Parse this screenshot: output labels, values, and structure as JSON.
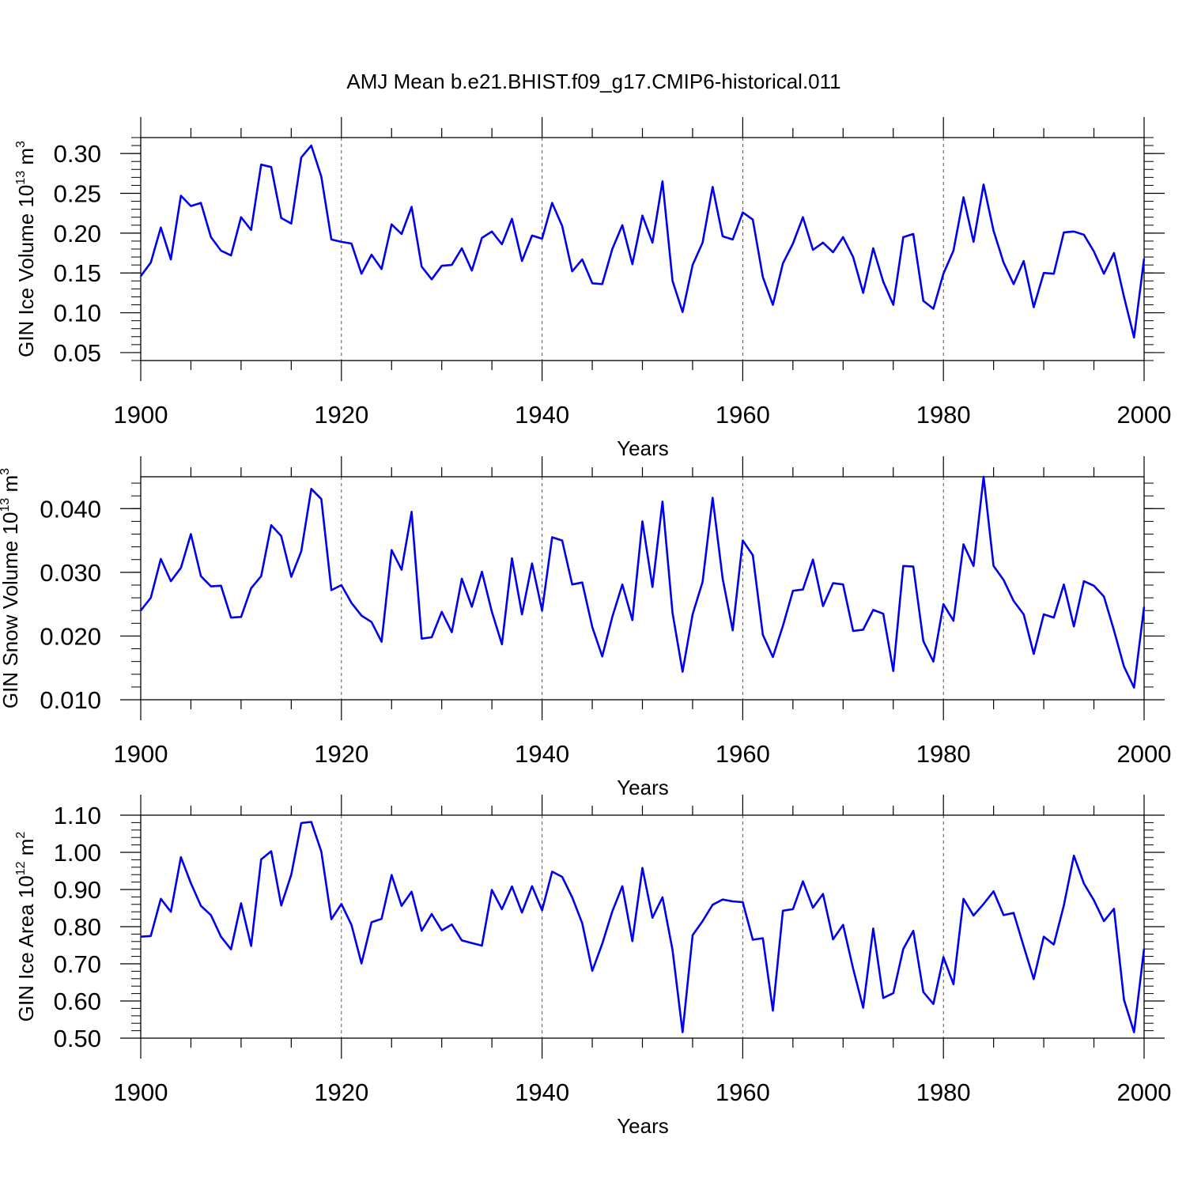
{
  "title": "AMJ Mean b.e21.BHIST.f09_g17.CMIP6-historical.011",
  "chart_data": [
    {
      "type": "line",
      "ylabel": "GIN Ice Volume 10",
      "ylabel_exp": "13",
      "ylabel_unit": " m",
      "ylabel_unit_exp": "3",
      "xlabel": "Years",
      "xlim": [
        1900,
        2000
      ],
      "ylim": [
        0.04,
        0.32
      ],
      "x_ticks": [
        "1900",
        "1920",
        "1940",
        "1960",
        "1980",
        "2000"
      ],
      "y_ticks": [
        "0.05",
        "0.10",
        "0.15",
        "0.20",
        "0.25",
        "0.30"
      ],
      "line_color": "#0000ee",
      "grid": "dashed vertical at 1920, 1940, 1960, 1980",
      "x": [
        1900,
        1901,
        1902,
        1903,
        1904,
        1905,
        1906,
        1907,
        1908,
        1909,
        1910,
        1911,
        1912,
        1913,
        1914,
        1915,
        1916,
        1917,
        1918,
        1919,
        1920,
        1921,
        1922,
        1923,
        1924,
        1925,
        1926,
        1927,
        1928,
        1929,
        1930,
        1931,
        1932,
        1933,
        1934,
        1935,
        1936,
        1937,
        1938,
        1939,
        1940,
        1941,
        1942,
        1943,
        1944,
        1945,
        1946,
        1947,
        1948,
        1949,
        1950,
        1951,
        1952,
        1953,
        1954,
        1955,
        1956,
        1957,
        1958,
        1959,
        1960,
        1961,
        1962,
        1963,
        1964,
        1965,
        1966,
        1967,
        1968,
        1969,
        1970,
        1971,
        1972,
        1973,
        1974,
        1975,
        1976,
        1977,
        1978,
        1979,
        1980,
        1981,
        1982,
        1983,
        1984,
        1985,
        1986,
        1987,
        1988,
        1989,
        1990,
        1991,
        1992,
        1993,
        1994,
        1995,
        1996,
        1997,
        1998,
        1999,
        2000
      ],
      "values": [
        0.146,
        0.163,
        0.207,
        0.167,
        0.247,
        0.234,
        0.238,
        0.195,
        0.178,
        0.172,
        0.22,
        0.204,
        0.286,
        0.283,
        0.219,
        0.212,
        0.295,
        0.31,
        0.271,
        0.192,
        0.189,
        0.187,
        0.149,
        0.173,
        0.155,
        0.211,
        0.199,
        0.233,
        0.158,
        0.142,
        0.159,
        0.16,
        0.181,
        0.153,
        0.194,
        0.202,
        0.186,
        0.218,
        0.165,
        0.197,
        0.193,
        0.238,
        0.209,
        0.152,
        0.167,
        0.137,
        0.136,
        0.18,
        0.21,
        0.161,
        0.222,
        0.188,
        0.265,
        0.14,
        0.101,
        0.16,
        0.188,
        0.258,
        0.196,
        0.192,
        0.226,
        0.217,
        0.145,
        0.11,
        0.162,
        0.187,
        0.22,
        0.179,
        0.188,
        0.176,
        0.195,
        0.17,
        0.125,
        0.181,
        0.139,
        0.11,
        0.195,
        0.199,
        0.115,
        0.105,
        0.149,
        0.178,
        0.245,
        0.189,
        0.261,
        0.203,
        0.163,
        0.136,
        0.165,
        0.107,
        0.15,
        0.149,
        0.201,
        0.202,
        0.198,
        0.177,
        0.149,
        0.175,
        0.12,
        0.069,
        0.168
      ]
    },
    {
      "type": "line",
      "ylabel": "GIN Snow Volume 10",
      "ylabel_exp": "13",
      "ylabel_unit": " m",
      "ylabel_unit_exp": "3",
      "xlabel": "Years",
      "xlim": [
        1900,
        2000
      ],
      "ylim": [
        0.01,
        0.045
      ],
      "x_ticks": [
        "1900",
        "1920",
        "1940",
        "1960",
        "1980",
        "2000"
      ],
      "y_ticks": [
        "0.010",
        "0.020",
        "0.030",
        "0.040"
      ],
      "line_color": "#0000ee",
      "grid": "dashed vertical at 1920, 1940, 1960, 1980",
      "x": [
        1900,
        1901,
        1902,
        1903,
        1904,
        1905,
        1906,
        1907,
        1908,
        1909,
        1910,
        1911,
        1912,
        1913,
        1914,
        1915,
        1916,
        1917,
        1918,
        1919,
        1920,
        1921,
        1922,
        1923,
        1924,
        1925,
        1926,
        1927,
        1928,
        1929,
        1930,
        1931,
        1932,
        1933,
        1934,
        1935,
        1936,
        1937,
        1938,
        1939,
        1940,
        1941,
        1942,
        1943,
        1944,
        1945,
        1946,
        1947,
        1948,
        1949,
        1950,
        1951,
        1952,
        1953,
        1954,
        1955,
        1956,
        1957,
        1958,
        1959,
        1960,
        1961,
        1962,
        1963,
        1964,
        1965,
        1966,
        1967,
        1968,
        1969,
        1970,
        1971,
        1972,
        1973,
        1974,
        1975,
        1976,
        1977,
        1978,
        1979,
        1980,
        1981,
        1982,
        1983,
        1984,
        1985,
        1986,
        1987,
        1988,
        1989,
        1990,
        1991,
        1992,
        1993,
        1994,
        1995,
        1996,
        1997,
        1998,
        1999,
        2000
      ],
      "values": [
        0.024,
        0.026,
        0.0321,
        0.0286,
        0.0307,
        0.036,
        0.0294,
        0.0278,
        0.0279,
        0.0229,
        0.023,
        0.0275,
        0.0294,
        0.0374,
        0.0357,
        0.0293,
        0.0333,
        0.0431,
        0.0415,
        0.0272,
        0.028,
        0.0252,
        0.0232,
        0.0222,
        0.0191,
        0.0335,
        0.0304,
        0.0395,
        0.0196,
        0.0198,
        0.0238,
        0.0206,
        0.029,
        0.0246,
        0.0301,
        0.0238,
        0.0187,
        0.0322,
        0.0234,
        0.0314,
        0.024,
        0.0355,
        0.035,
        0.0281,
        0.0284,
        0.0214,
        0.0168,
        0.023,
        0.0281,
        0.0225,
        0.038,
        0.0277,
        0.0411,
        0.0236,
        0.0144,
        0.0234,
        0.0285,
        0.0417,
        0.029,
        0.0209,
        0.035,
        0.0327,
        0.0202,
        0.0167,
        0.0216,
        0.0271,
        0.0273,
        0.032,
        0.0247,
        0.0283,
        0.0281,
        0.0208,
        0.021,
        0.0241,
        0.0235,
        0.0145,
        0.031,
        0.0309,
        0.0192,
        0.016,
        0.025,
        0.0224,
        0.0344,
        0.031,
        0.045,
        0.031,
        0.0288,
        0.0255,
        0.0234,
        0.0172,
        0.0234,
        0.0229,
        0.0281,
        0.0215,
        0.0286,
        0.0279,
        0.0262,
        0.0209,
        0.0152,
        0.0119,
        0.0246
      ]
    },
    {
      "type": "line",
      "ylabel": "GIN Ice Area 10",
      "ylabel_exp": "12",
      "ylabel_unit": " m",
      "ylabel_unit_exp": "2",
      "xlabel": "Years",
      "xlim": [
        1900,
        2000
      ],
      "ylim": [
        0.5,
        1.1
      ],
      "x_ticks": [
        "1900",
        "1920",
        "1940",
        "1960",
        "1980",
        "2000"
      ],
      "y_ticks": [
        "0.50",
        "0.60",
        "0.70",
        "0.80",
        "0.90",
        "1.00",
        "1.10"
      ],
      "line_color": "#0000ee",
      "grid": "dashed vertical at 1920, 1940, 1960, 1980",
      "x": [
        1900,
        1901,
        1902,
        1903,
        1904,
        1905,
        1906,
        1907,
        1908,
        1909,
        1910,
        1911,
        1912,
        1913,
        1914,
        1915,
        1916,
        1917,
        1918,
        1919,
        1920,
        1921,
        1922,
        1923,
        1924,
        1925,
        1926,
        1927,
        1928,
        1929,
        1930,
        1931,
        1932,
        1933,
        1934,
        1935,
        1936,
        1937,
        1938,
        1939,
        1940,
        1941,
        1942,
        1943,
        1944,
        1945,
        1946,
        1947,
        1948,
        1949,
        1950,
        1951,
        1952,
        1953,
        1954,
        1955,
        1956,
        1957,
        1958,
        1959,
        1960,
        1961,
        1962,
        1963,
        1964,
        1965,
        1966,
        1967,
        1968,
        1969,
        1970,
        1971,
        1972,
        1973,
        1974,
        1975,
        1976,
        1977,
        1978,
        1979,
        1980,
        1981,
        1982,
        1983,
        1984,
        1985,
        1986,
        1987,
        1988,
        1989,
        1990,
        1991,
        1992,
        1993,
        1994,
        1995,
        1996,
        1997,
        1998,
        1999,
        2000
      ],
      "values": [
        0.773,
        0.775,
        0.875,
        0.84,
        0.987,
        0.917,
        0.856,
        0.831,
        0.773,
        0.739,
        0.863,
        0.748,
        0.981,
        1.003,
        0.857,
        0.94,
        1.079,
        1.082,
        1.002,
        0.82,
        0.861,
        0.805,
        0.701,
        0.812,
        0.821,
        0.939,
        0.856,
        0.894,
        0.789,
        0.834,
        0.79,
        0.806,
        0.763,
        0.756,
        0.749,
        0.899,
        0.847,
        0.908,
        0.838,
        0.909,
        0.844,
        0.948,
        0.934,
        0.879,
        0.809,
        0.681,
        0.754,
        0.841,
        0.909,
        0.761,
        0.958,
        0.824,
        0.879,
        0.737,
        0.516,
        0.777,
        0.815,
        0.859,
        0.873,
        0.868,
        0.866,
        0.765,
        0.769,
        0.574,
        0.843,
        0.847,
        0.922,
        0.851,
        0.888,
        0.766,
        0.805,
        0.687,
        0.582,
        0.795,
        0.608,
        0.621,
        0.74,
        0.789,
        0.624,
        0.592,
        0.718,
        0.645,
        0.875,
        0.83,
        0.861,
        0.895,
        0.831,
        0.837,
        0.747,
        0.659,
        0.773,
        0.752,
        0.857,
        0.991,
        0.916,
        0.871,
        0.815,
        0.848,
        0.603,
        0.516,
        0.741
      ]
    }
  ]
}
